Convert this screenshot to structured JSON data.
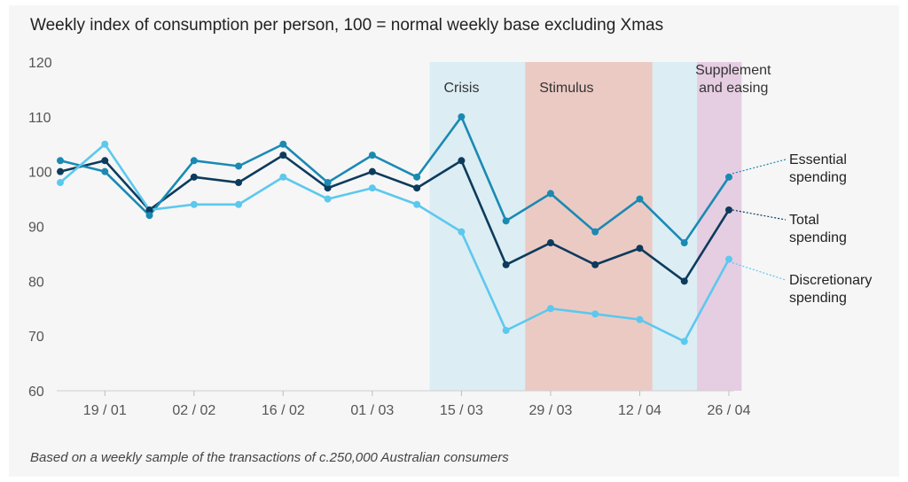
{
  "title": "Weekly index of consumption per person, 100 = normal weekly base excluding Xmas",
  "footnote": "Based on a weekly sample of the transactions of c.250,000 Australian consumers",
  "chart_data": {
    "type": "line",
    "title": "Weekly index of consumption per person, 100 = normal weekly base excluding Xmas",
    "xlabel": "",
    "ylabel": "",
    "ylim": [
      60,
      120
    ],
    "yticks": [
      60,
      70,
      80,
      90,
      100,
      110,
      120
    ],
    "x": [
      "2020-01-12",
      "2020-01-19",
      "2020-01-26",
      "2020-02-02",
      "2020-02-09",
      "2020-02-16",
      "2020-02-23",
      "2020-03-01",
      "2020-03-08",
      "2020-03-15",
      "2020-03-22",
      "2020-03-29",
      "2020-04-05",
      "2020-04-12",
      "2020-04-19",
      "2020-04-26"
    ],
    "xtick_labels": [
      "19 / 01",
      "02 / 02",
      "16 / 02",
      "01 / 03",
      "15 / 03",
      "29 / 03",
      "12 / 04",
      "26 / 04"
    ],
    "xtick_dates": [
      "2020-01-19",
      "2020-02-02",
      "2020-02-16",
      "2020-03-01",
      "2020-03-15",
      "2020-03-29",
      "2020-04-12",
      "2020-04-26"
    ],
    "grid": false,
    "series": [
      {
        "name": "Essential spending",
        "color": "#1a8ab3",
        "values": [
          102,
          100,
          92,
          102,
          101,
          105,
          98,
          103,
          99,
          110,
          91,
          96,
          89,
          95,
          87,
          99
        ]
      },
      {
        "name": "Total spending",
        "color": "#0d3b5c",
        "values": [
          100,
          102,
          93,
          99,
          98,
          103,
          97,
          100,
          97,
          102,
          83,
          87,
          83,
          86,
          80,
          93
        ]
      },
      {
        "name": "Discretionary spending",
        "color": "#5cc8ee",
        "values": [
          98,
          105,
          93,
          94,
          94,
          99,
          95,
          97,
          94,
          89,
          71,
          75,
          74,
          73,
          69,
          84
        ]
      }
    ],
    "annotations": [
      {
        "label": "Crisis",
        "start": "2020-03-10",
        "end": "2020-03-25",
        "color": "#dcedf4"
      },
      {
        "label": "Stimulus",
        "start": "2020-03-25",
        "end": "2020-04-14",
        "color": "#eccac4"
      },
      {
        "label": "",
        "start": "2020-04-14",
        "end": "2020-04-21",
        "color": "#dcedf4"
      },
      {
        "label": "Supplement and easing",
        "start": "2020-04-21",
        "end": "2020-04-28",
        "color": "#e5cde2"
      }
    ]
  }
}
